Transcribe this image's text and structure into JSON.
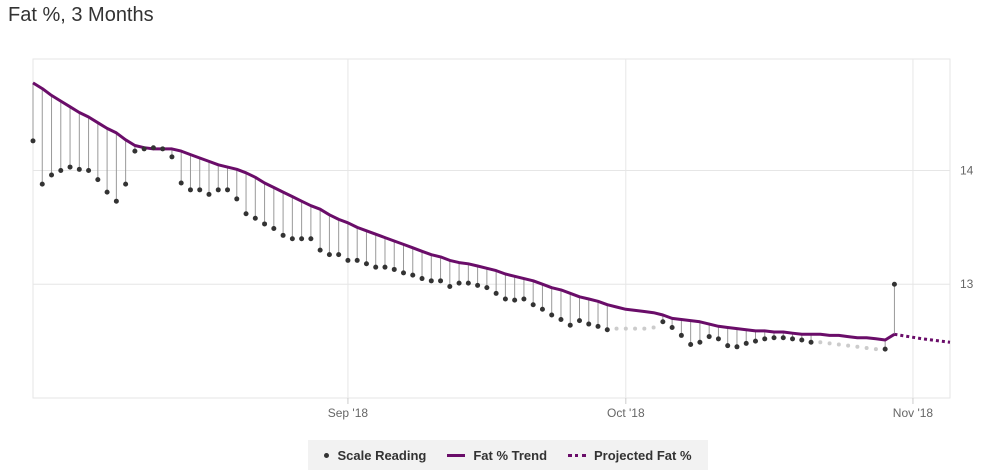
{
  "page_title": "Fat %, 3 Months",
  "colors": {
    "trend": "#6a0d69",
    "scale": "#333333",
    "projected_scale": "#cccccc",
    "grid": "#e6e6e6",
    "stem": "#999999"
  },
  "legend": {
    "scale": "Scale Reading",
    "trend": "Fat % Trend",
    "projected": "Projected Fat %"
  },
  "chart_data": {
    "type": "line",
    "title": "Fat %, 3 Months",
    "xlabel": "",
    "ylabel": "",
    "xlim": [
      "2018-07-29",
      "2018-11-05"
    ],
    "ylim": [
      12.0,
      14.98
    ],
    "y_ticks": [
      13,
      14
    ],
    "x_ticks": [
      {
        "date": "2018-09-01",
        "label": "Sep '18"
      },
      {
        "date": "2018-10-01",
        "label": "Oct '18"
      },
      {
        "date": "2018-11-01",
        "label": "Nov '18"
      }
    ],
    "grid": true,
    "legend_position": "bottom-center",
    "series": [
      {
        "name": "Scale Reading",
        "type": "scatter",
        "points": [
          [
            "2018-07-29",
            14.26
          ],
          [
            "2018-07-30",
            13.88
          ],
          [
            "2018-07-31",
            13.96
          ],
          [
            "2018-08-01",
            14.0
          ],
          [
            "2018-08-02",
            14.03
          ],
          [
            "2018-08-03",
            14.01
          ],
          [
            "2018-08-04",
            14.0
          ],
          [
            "2018-08-05",
            13.92
          ],
          [
            "2018-08-06",
            13.81
          ],
          [
            "2018-08-07",
            13.73
          ],
          [
            "2018-08-08",
            13.88
          ],
          [
            "2018-08-09",
            14.17
          ],
          [
            "2018-08-10",
            14.19
          ],
          [
            "2018-08-11",
            14.2
          ],
          [
            "2018-08-12",
            14.19
          ],
          [
            "2018-08-13",
            14.12
          ],
          [
            "2018-08-14",
            13.89
          ],
          [
            "2018-08-15",
            13.83
          ],
          [
            "2018-08-16",
            13.83
          ],
          [
            "2018-08-17",
            13.79
          ],
          [
            "2018-08-18",
            13.83
          ],
          [
            "2018-08-19",
            13.83
          ],
          [
            "2018-08-20",
            13.75
          ],
          [
            "2018-08-21",
            13.62
          ],
          [
            "2018-08-22",
            13.58
          ],
          [
            "2018-08-23",
            13.53
          ],
          [
            "2018-08-24",
            13.49
          ],
          [
            "2018-08-25",
            13.43
          ],
          [
            "2018-08-26",
            13.4
          ],
          [
            "2018-08-27",
            13.4
          ],
          [
            "2018-08-28",
            13.4
          ],
          [
            "2018-08-29",
            13.3
          ],
          [
            "2018-08-30",
            13.26
          ],
          [
            "2018-08-31",
            13.26
          ],
          [
            "2018-09-01",
            13.21
          ],
          [
            "2018-09-02",
            13.21
          ],
          [
            "2018-09-03",
            13.18
          ],
          [
            "2018-09-04",
            13.15
          ],
          [
            "2018-09-05",
            13.15
          ],
          [
            "2018-09-06",
            13.13
          ],
          [
            "2018-09-07",
            13.1
          ],
          [
            "2018-09-08",
            13.08
          ],
          [
            "2018-09-09",
            13.05
          ],
          [
            "2018-09-10",
            13.03
          ],
          [
            "2018-09-11",
            13.03
          ],
          [
            "2018-09-12",
            12.98
          ],
          [
            "2018-09-13",
            13.01
          ],
          [
            "2018-09-14",
            13.01
          ],
          [
            "2018-09-15",
            12.99
          ],
          [
            "2018-09-16",
            12.97
          ],
          [
            "2018-09-17",
            12.92
          ],
          [
            "2018-09-18",
            12.87
          ],
          [
            "2018-09-19",
            12.86
          ],
          [
            "2018-09-20",
            12.87
          ],
          [
            "2018-09-21",
            12.82
          ],
          [
            "2018-09-22",
            12.78
          ],
          [
            "2018-09-23",
            12.73
          ],
          [
            "2018-09-24",
            12.69
          ],
          [
            "2018-09-25",
            12.64
          ],
          [
            "2018-09-26",
            12.68
          ],
          [
            "2018-09-27",
            12.65
          ],
          [
            "2018-09-28",
            12.63
          ],
          [
            "2018-09-29",
            12.6
          ],
          [
            "2018-10-05",
            12.67
          ],
          [
            "2018-10-06",
            12.62
          ],
          [
            "2018-10-07",
            12.55
          ],
          [
            "2018-10-08",
            12.47
          ],
          [
            "2018-10-09",
            12.49
          ],
          [
            "2018-10-10",
            12.54
          ],
          [
            "2018-10-11",
            12.52
          ],
          [
            "2018-10-12",
            12.46
          ],
          [
            "2018-10-13",
            12.45
          ],
          [
            "2018-10-14",
            12.48
          ],
          [
            "2018-10-15",
            12.5
          ],
          [
            "2018-10-16",
            12.52
          ],
          [
            "2018-10-17",
            12.53
          ],
          [
            "2018-10-18",
            12.53
          ],
          [
            "2018-10-19",
            12.52
          ],
          [
            "2018-10-20",
            12.51
          ],
          [
            "2018-10-21",
            12.49
          ],
          [
            "2018-10-29",
            12.43
          ],
          [
            "2018-10-30",
            13.0
          ]
        ]
      },
      {
        "name": "Fat % Trend",
        "type": "line",
        "points": [
          [
            "2018-07-29",
            14.77
          ],
          [
            "2018-07-30",
            14.72
          ],
          [
            "2018-07-31",
            14.66
          ],
          [
            "2018-08-01",
            14.61
          ],
          [
            "2018-08-02",
            14.56
          ],
          [
            "2018-08-03",
            14.51
          ],
          [
            "2018-08-04",
            14.47
          ],
          [
            "2018-08-05",
            14.42
          ],
          [
            "2018-08-06",
            14.37
          ],
          [
            "2018-08-07",
            14.33
          ],
          [
            "2018-08-08",
            14.27
          ],
          [
            "2018-08-09",
            14.22
          ],
          [
            "2018-08-10",
            14.2
          ],
          [
            "2018-08-11",
            14.19
          ],
          [
            "2018-08-12",
            14.19
          ],
          [
            "2018-08-13",
            14.19
          ],
          [
            "2018-08-14",
            14.17
          ],
          [
            "2018-08-15",
            14.14
          ],
          [
            "2018-08-16",
            14.11
          ],
          [
            "2018-08-17",
            14.08
          ],
          [
            "2018-08-18",
            14.05
          ],
          [
            "2018-08-19",
            14.03
          ],
          [
            "2018-08-20",
            14.01
          ],
          [
            "2018-08-21",
            13.98
          ],
          [
            "2018-08-22",
            13.94
          ],
          [
            "2018-08-23",
            13.89
          ],
          [
            "2018-08-24",
            13.85
          ],
          [
            "2018-08-25",
            13.81
          ],
          [
            "2018-08-26",
            13.77
          ],
          [
            "2018-08-27",
            13.73
          ],
          [
            "2018-08-28",
            13.69
          ],
          [
            "2018-08-29",
            13.66
          ],
          [
            "2018-08-30",
            13.61
          ],
          [
            "2018-08-31",
            13.57
          ],
          [
            "2018-09-01",
            13.54
          ],
          [
            "2018-09-02",
            13.5
          ],
          [
            "2018-09-03",
            13.47
          ],
          [
            "2018-09-04",
            13.44
          ],
          [
            "2018-09-05",
            13.41
          ],
          [
            "2018-09-06",
            13.38
          ],
          [
            "2018-09-07",
            13.35
          ],
          [
            "2018-09-08",
            13.32
          ],
          [
            "2018-09-09",
            13.29
          ],
          [
            "2018-09-10",
            13.26
          ],
          [
            "2018-09-11",
            13.24
          ],
          [
            "2018-09-12",
            13.21
          ],
          [
            "2018-09-13",
            13.19
          ],
          [
            "2018-09-14",
            13.18
          ],
          [
            "2018-09-15",
            13.16
          ],
          [
            "2018-09-16",
            13.14
          ],
          [
            "2018-09-17",
            13.12
          ],
          [
            "2018-09-18",
            13.09
          ],
          [
            "2018-09-19",
            13.07
          ],
          [
            "2018-09-20",
            13.05
          ],
          [
            "2018-09-21",
            13.03
          ],
          [
            "2018-09-22",
            13.0
          ],
          [
            "2018-09-23",
            12.97
          ],
          [
            "2018-09-24",
            12.95
          ],
          [
            "2018-09-25",
            12.92
          ],
          [
            "2018-09-26",
            12.89
          ],
          [
            "2018-09-27",
            12.87
          ],
          [
            "2018-09-28",
            12.85
          ],
          [
            "2018-09-29",
            12.82
          ],
          [
            "2018-09-30",
            12.8
          ],
          [
            "2018-10-01",
            12.78
          ],
          [
            "2018-10-02",
            12.77
          ],
          [
            "2018-10-03",
            12.76
          ],
          [
            "2018-10-04",
            12.75
          ],
          [
            "2018-10-05",
            12.73
          ],
          [
            "2018-10-06",
            12.7
          ],
          [
            "2018-10-07",
            12.69
          ],
          [
            "2018-10-08",
            12.68
          ],
          [
            "2018-10-09",
            12.67
          ],
          [
            "2018-10-10",
            12.65
          ],
          [
            "2018-10-11",
            12.63
          ],
          [
            "2018-10-12",
            12.62
          ],
          [
            "2018-10-13",
            12.61
          ],
          [
            "2018-10-14",
            12.6
          ],
          [
            "2018-10-15",
            12.59
          ],
          [
            "2018-10-16",
            12.59
          ],
          [
            "2018-10-17",
            12.58
          ],
          [
            "2018-10-18",
            12.58
          ],
          [
            "2018-10-19",
            12.57
          ],
          [
            "2018-10-20",
            12.56
          ],
          [
            "2018-10-21",
            12.56
          ],
          [
            "2018-10-22",
            12.56
          ],
          [
            "2018-10-23",
            12.55
          ],
          [
            "2018-10-24",
            12.55
          ],
          [
            "2018-10-25",
            12.54
          ],
          [
            "2018-10-26",
            12.53
          ],
          [
            "2018-10-27",
            12.53
          ],
          [
            "2018-10-28",
            12.52
          ],
          [
            "2018-10-29",
            12.51
          ],
          [
            "2018-10-30",
            12.56
          ]
        ]
      },
      {
        "name": "Projected Fat %",
        "type": "line",
        "style": "dotted",
        "points": [
          [
            "2018-10-30",
            12.56
          ],
          [
            "2018-11-02",
            12.52
          ],
          [
            "2018-11-05",
            12.49
          ]
        ]
      },
      {
        "type": "scatter",
        "style": "faint",
        "points": [
          [
            "2018-09-30",
            12.61
          ],
          [
            "2018-10-01",
            12.61
          ],
          [
            "2018-10-02",
            12.61
          ],
          [
            "2018-10-03",
            12.61
          ],
          [
            "2018-10-04",
            12.62
          ],
          [
            "2018-10-22",
            12.49
          ],
          [
            "2018-10-23",
            12.48
          ],
          [
            "2018-10-24",
            12.47
          ],
          [
            "2018-10-25",
            12.46
          ],
          [
            "2018-10-26",
            12.45
          ],
          [
            "2018-10-27",
            12.44
          ],
          [
            "2018-10-28",
            12.43
          ]
        ]
      }
    ]
  }
}
